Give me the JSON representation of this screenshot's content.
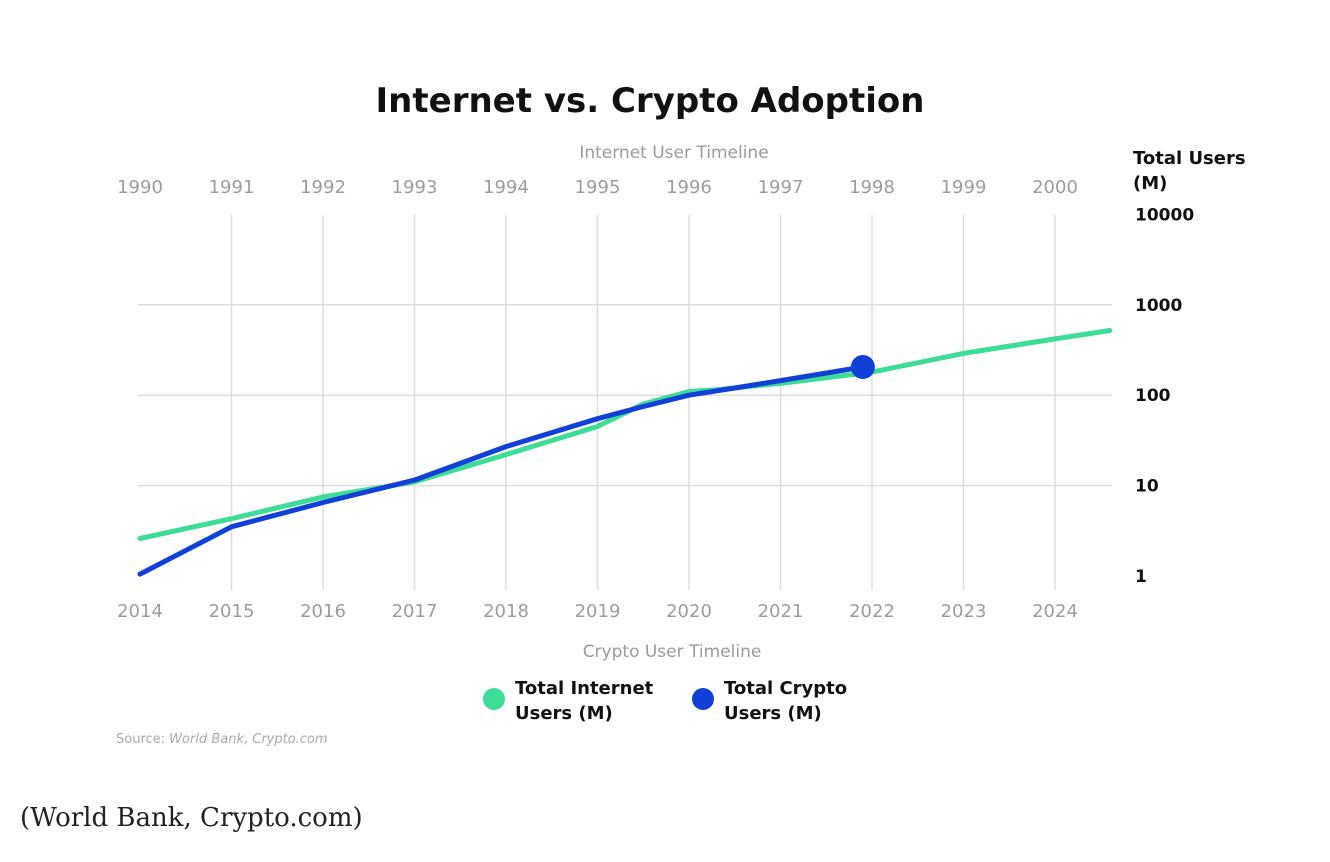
{
  "caption": "(World Bank, Crypto.com)",
  "chart_data": {
    "type": "line",
    "title": "Internet vs. Crypto Adoption",
    "top_axis": {
      "label": "Internet User Timeline",
      "ticks": [
        "1990",
        "1991",
        "1992",
        "1993",
        "1994",
        "1995",
        "1996",
        "1997",
        "1998",
        "1999",
        "2000"
      ]
    },
    "bottom_axis": {
      "label": "Crypto User Timeline",
      "ticks": [
        "2014",
        "2015",
        "2016",
        "2017",
        "2018",
        "2019",
        "2020",
        "2021",
        "2022",
        "2023",
        "2024"
      ]
    },
    "y_axis": {
      "label_line1": "Total Users",
      "label_line2": "(M)",
      "scale": "log",
      "ticks": [
        "10000",
        "1000",
        "100",
        "10",
        "1"
      ],
      "tick_values": [
        10000,
        1000,
        100,
        10,
        1
      ],
      "ylim": [
        1,
        10000
      ],
      "position": "right"
    },
    "grid": true,
    "legend_position": "bottom",
    "series": [
      {
        "name_line1": "Total Internet",
        "name_line2": "Users (M)",
        "color": "#3ddc97",
        "axis": "top",
        "x": [
          1990,
          1991,
          1992,
          1993,
          1994,
          1995,
          1995.5,
          1996,
          1996.3,
          1997,
          1998,
          1999,
          2000,
          2000.6
        ],
        "y": [
          2.6,
          4.3,
          7.5,
          11,
          22,
          45,
          80,
          110,
          115,
          135,
          180,
          290,
          420,
          520
        ]
      },
      {
        "name_line1": "Total Crypto",
        "name_line2": "Users (M)",
        "color": "#1040d8",
        "axis": "bottom",
        "x": [
          2014,
          2015,
          2016,
          2017,
          2018,
          2019,
          2019.5,
          2020,
          2020.5,
          2021,
          2021.9
        ],
        "y": [
          1.05,
          3.5,
          6.5,
          11.5,
          27,
          55,
          75,
          100,
          120,
          145,
          205
        ]
      }
    ],
    "marker": {
      "series": "Total Crypto Users (M)",
      "x": 2021.9,
      "y": 205
    },
    "source_prefix": "Source: ",
    "source_text": "World Bank, Crypto.com"
  }
}
